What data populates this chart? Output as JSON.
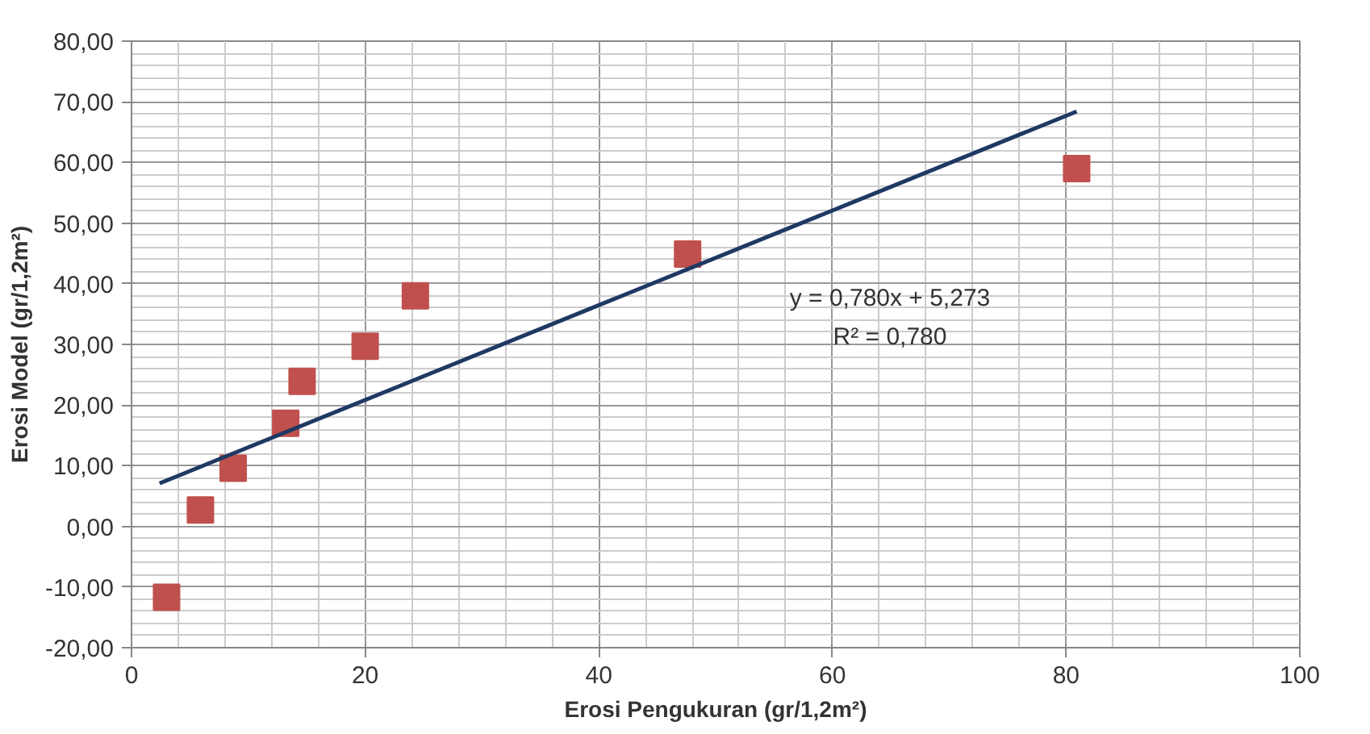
{
  "chart_data": {
    "type": "scatter",
    "xlabel": "Erosi Pengukuran (gr/1,2m²)",
    "ylabel": "Erosi Model (gr/1,2m²)",
    "x": [
      3.0,
      5.9,
      8.7,
      13.2,
      14.6,
      20.0,
      24.3,
      47.6,
      80.9
    ],
    "series": [
      {
        "color": "#c0504d",
        "marker": "square",
        "values": [
          -11.7,
          2.7,
          9.6,
          17.0,
          23.9,
          29.7,
          38.0,
          44.9,
          59.0
        ]
      },
      {
        "type": "line",
        "marker": "none",
        "color": "#1f3864",
        "x": [
          2.4,
          80.9
        ],
        "values": [
          7.1,
          68.4
        ]
      }
    ],
    "xlim": [
      0,
      100
    ],
    "xticks": [
      0,
      20,
      40,
      60,
      80,
      100
    ],
    "ylim": [
      -20,
      80
    ],
    "yticks": [
      {
        "value": -20,
        "label": "-20,00"
      },
      {
        "value": -10,
        "label": "-10,00"
      },
      {
        "value": 0,
        "label": "0,00"
      },
      {
        "value": 10,
        "label": "10,00"
      },
      {
        "value": 20,
        "label": "20,00"
      },
      {
        "value": 30,
        "label": "30,00"
      },
      {
        "value": 40,
        "label": "40,00"
      },
      {
        "value": 50,
        "label": "50,00"
      },
      {
        "value": 60,
        "label": "60,00"
      },
      {
        "value": 70,
        "label": "70,00"
      },
      {
        "value": 80,
        "label": "80,00"
      }
    ],
    "annotations": [
      "y = 0,780x + 5,273",
      "R² = 0,780"
    ],
    "grid": true
  }
}
